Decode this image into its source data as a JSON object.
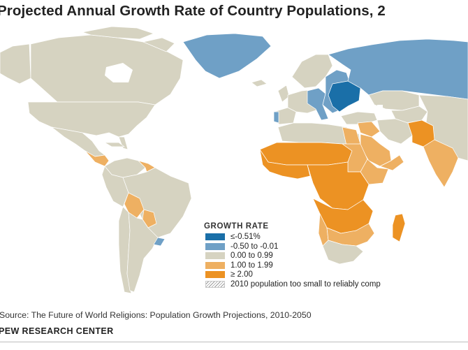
{
  "title": "Projected Annual Growth Rate of Country Populations, 2",
  "legend": {
    "heading": "GROWTH RATE",
    "items": [
      {
        "label": "≤-0.51%",
        "color": "#1a6fa8"
      },
      {
        "label": "-0.50 to -0.01",
        "color": "#6fa0c6"
      },
      {
        "label": "0.00 to 0.99",
        "color": "#d6d3c1"
      },
      {
        "label": "1.00 to 1.99",
        "color": "#eeb062"
      },
      {
        "label": "≥ 2.00",
        "color": "#ec9223"
      },
      {
        "label": "2010 population too small to reliably comp",
        "color": "hatched"
      }
    ]
  },
  "source": "Source: The Future of World Religions: Population Growth Projections, 2010-2050",
  "organization": "PEW RESEARCH CENTER",
  "colors": {
    "lowest": "#1a6fa8",
    "low": "#6fa0c6",
    "flat": "#d6d3c1",
    "medium": "#eeb062",
    "high": "#ec9223",
    "border": "#ffffff"
  }
}
